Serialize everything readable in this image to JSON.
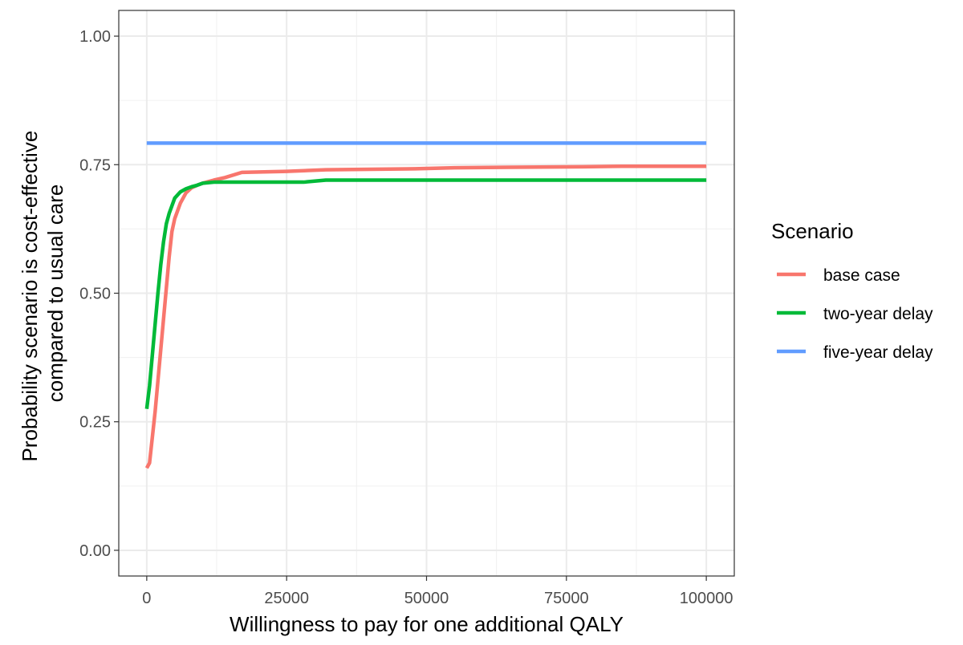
{
  "chart_data": {
    "type": "line",
    "xlabel": "Willingness to pay for one additional QALY",
    "ylabel_lines": [
      "Probability scenario is cost-effective",
      "compared to usual care"
    ],
    "xlim": [
      -5000,
      105000
    ],
    "ylim": [
      -0.05,
      1.05
    ],
    "x_ticks": [
      0,
      25000,
      50000,
      75000,
      100000
    ],
    "x_tick_labels": [
      "0",
      "25000",
      "50000",
      "75000",
      "100000"
    ],
    "y_ticks": [
      0,
      0.25,
      0.5,
      0.75,
      1.0
    ],
    "y_tick_labels": [
      "0.00",
      "0.25",
      "0.50",
      "0.75",
      "1.00"
    ],
    "grid": true,
    "legend": {
      "title": "Scenario",
      "position": "right"
    },
    "series": [
      {
        "name": "base case",
        "color": "#F8766D",
        "points": [
          [
            0,
            0.16
          ],
          [
            500,
            0.17
          ],
          [
            1000,
            0.22
          ],
          [
            1500,
            0.27
          ],
          [
            2000,
            0.33
          ],
          [
            2500,
            0.39
          ],
          [
            3000,
            0.45
          ],
          [
            3500,
            0.51
          ],
          [
            4000,
            0.57
          ],
          [
            4500,
            0.62
          ],
          [
            5000,
            0.645
          ],
          [
            6000,
            0.675
          ],
          [
            7000,
            0.695
          ],
          [
            8000,
            0.705
          ],
          [
            9000,
            0.71
          ],
          [
            10000,
            0.714
          ],
          [
            12000,
            0.72
          ],
          [
            14000,
            0.725
          ],
          [
            17000,
            0.735
          ],
          [
            25000,
            0.737
          ],
          [
            32000,
            0.74
          ],
          [
            40000,
            0.741
          ],
          [
            48000,
            0.742
          ],
          [
            55000,
            0.744
          ],
          [
            65000,
            0.745
          ],
          [
            78000,
            0.746
          ],
          [
            85000,
            0.747
          ],
          [
            100000,
            0.747
          ]
        ]
      },
      {
        "name": "two-year delay",
        "color": "#00BA38",
        "points": [
          [
            0,
            0.275
          ],
          [
            500,
            0.32
          ],
          [
            1000,
            0.38
          ],
          [
            1500,
            0.44
          ],
          [
            2000,
            0.5
          ],
          [
            2500,
            0.555
          ],
          [
            3000,
            0.6
          ],
          [
            3500,
            0.635
          ],
          [
            4000,
            0.655
          ],
          [
            5000,
            0.685
          ],
          [
            6000,
            0.697
          ],
          [
            7000,
            0.703
          ],
          [
            8000,
            0.707
          ],
          [
            9000,
            0.71
          ],
          [
            10000,
            0.714
          ],
          [
            12000,
            0.716
          ],
          [
            20000,
            0.716
          ],
          [
            28000,
            0.716
          ],
          [
            32000,
            0.72
          ],
          [
            50000,
            0.72
          ],
          [
            75000,
            0.72
          ],
          [
            100000,
            0.72
          ]
        ]
      },
      {
        "name": "five-year delay",
        "color": "#619CFF",
        "points": [
          [
            0,
            0.792
          ],
          [
            100000,
            0.792
          ]
        ]
      }
    ]
  }
}
